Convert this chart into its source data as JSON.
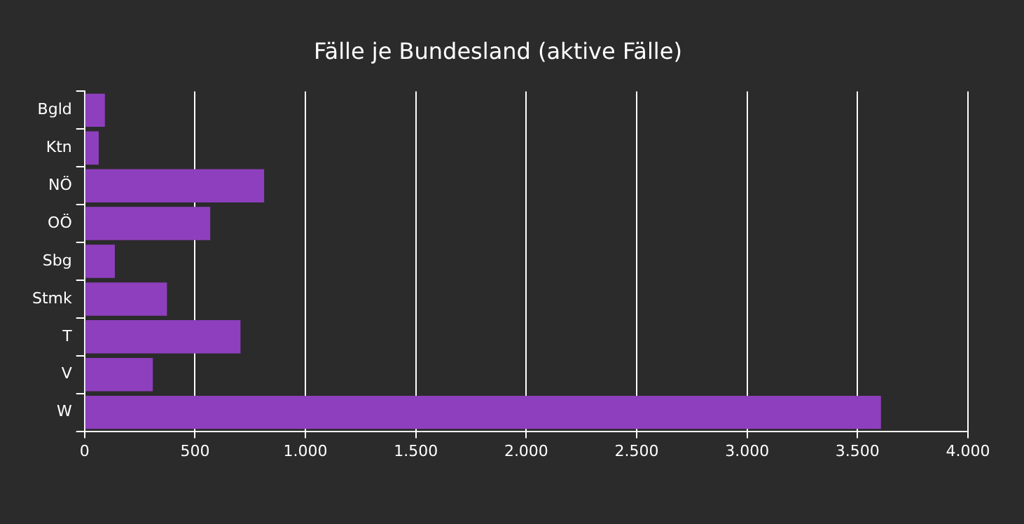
{
  "chart_data": {
    "type": "bar",
    "orientation": "horizontal",
    "title": "Fälle je Bundesland (aktive Fälle)",
    "categories": [
      "Bgld",
      "Ktn",
      "NÖ",
      "OÖ",
      "Sbg",
      "Stmk",
      "T",
      "V",
      "W"
    ],
    "values": [
      92,
      64,
      813,
      569,
      137,
      373,
      706,
      309,
      3606
    ],
    "color": "#8e3fbd",
    "xlim": [
      0,
      4000
    ],
    "xticks": [
      0,
      500,
      {
        "value": 1000,
        "label": "1.000"
      },
      {
        "value": 1500,
        "label": "1.500"
      },
      {
        "value": 2000,
        "label": "2.000"
      },
      {
        "value": 2500,
        "label": "2.500"
      },
      {
        "value": 3000,
        "label": "3.000"
      },
      {
        "value": 3500,
        "label": "3.500"
      },
      {
        "value": 4000,
        "label": "4.000"
      }
    ],
    "grid": "x",
    "legend": false
  }
}
